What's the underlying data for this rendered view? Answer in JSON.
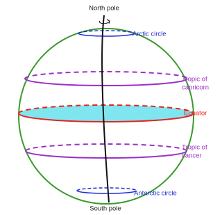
{
  "labels": {
    "north_pole": "North pole",
    "arctic_circle": "Arctic circle",
    "tropic_capricorn": [
      "Tropic of",
      "capricorn"
    ],
    "equator": "Equator",
    "tropic_cancer": [
      "Tropic of",
      "cancer"
    ],
    "antarctic_circle": "Antarctic circle",
    "south_pole": "South pole"
  }
}
